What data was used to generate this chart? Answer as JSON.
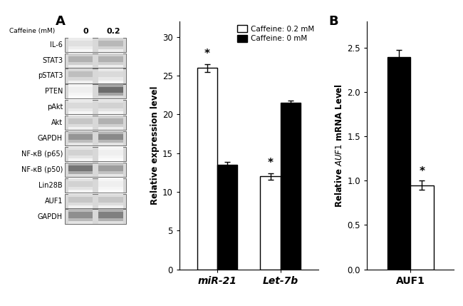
{
  "panel_A_label": "A",
  "panel_B_label": "B",
  "western_blot_labels": [
    "IL-6",
    "STAT3",
    "pSTAT3",
    "PTEN",
    "pAkt",
    "Akt",
    "GAPDH",
    "NF-κB (p65)",
    "NF-κB (p50)",
    "Lin28B",
    "AUF1",
    "GAPDH"
  ],
  "caffeine_header": "Caffeine (mM)",
  "caffeine_col0": "0",
  "caffeine_col02": "0.2",
  "bar_chart1_groups": [
    "miR-21",
    "Let-7b"
  ],
  "bar_chart1_white_vals": [
    26.0,
    12.0
  ],
  "bar_chart1_black_vals": [
    13.5,
    21.5
  ],
  "bar_chart1_ylabel": "Relative expression level",
  "bar_chart1_ylim": [
    0,
    32
  ],
  "bar_chart1_yticks": [
    0,
    5,
    10,
    15,
    20,
    25,
    30
  ],
  "bar_chart1_white_err": [
    0.5,
    0.4
  ],
  "bar_chart1_black_err": [
    0.4,
    0.3
  ],
  "legend_white": "Caffeine: 0.2 mM",
  "legend_black": "Caffeine: 0 mM",
  "bar_chart2_groups": [
    "AUF1"
  ],
  "bar_chart2_black_vals": [
    2.4
  ],
  "bar_chart2_white_vals": [
    0.95
  ],
  "bar_chart2_ylabel": "Relative $\\mathit{AUF1}$ mRNA Level",
  "bar_chart2_ylim": [
    0,
    2.8
  ],
  "bar_chart2_yticks": [
    0,
    0.5,
    1.0,
    1.5,
    2.0,
    2.5
  ],
  "bar_chart2_black_err": [
    0.08
  ],
  "bar_chart2_white_err": [
    0.05
  ],
  "bar_width": 0.32,
  "bar_color_white": "#ffffff",
  "bar_color_black": "#000000",
  "bar_edge_color": "#000000",
  "background_color": "#ffffff",
  "font_color": "#000000",
  "band_data": [
    [
      0.15,
      0.35
    ],
    [
      0.38,
      0.38
    ],
    [
      0.32,
      0.18
    ],
    [
      0.08,
      0.72
    ],
    [
      0.18,
      0.22
    ],
    [
      0.28,
      0.38
    ],
    [
      0.52,
      0.58
    ],
    [
      0.22,
      0.08
    ],
    [
      0.68,
      0.48
    ],
    [
      0.22,
      0.08
    ],
    [
      0.28,
      0.28
    ],
    [
      0.55,
      0.62
    ]
  ]
}
